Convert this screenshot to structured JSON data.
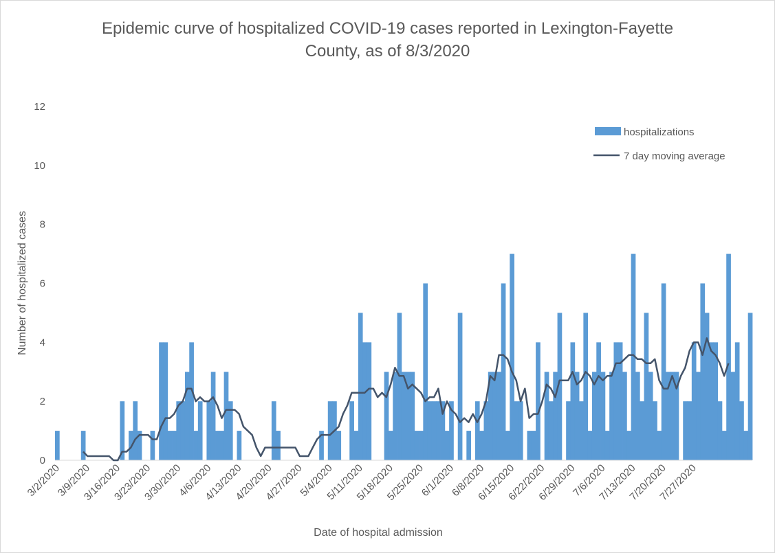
{
  "chart_data": {
    "type": "bar",
    "title_lines": [
      "Epidemic curve of hospitalized COVID-19 cases reported in Lexington-Fayette",
      "County, as of 8/3/2020"
    ],
    "xlabel": "Date of hospital admission",
    "ylabel": "Number of hospitalized cases",
    "ylim": [
      0,
      12
    ],
    "yticks": [
      0,
      2,
      4,
      6,
      8,
      10,
      12
    ],
    "x_start": "3/2/2020",
    "x_tick_labels": [
      "3/2/2020",
      "3/9/2020",
      "3/16/2020",
      "3/23/2020",
      "3/30/2020",
      "4/6/2020",
      "4/13/2020",
      "4/20/2020",
      "4/27/2020",
      "5/4/2020",
      "5/11/2020",
      "5/18/2020",
      "5/25/2020",
      "6/1/2020",
      "6/8/2020",
      "6/15/2020",
      "6/22/2020",
      "6/29/2020",
      "7/6/2020",
      "7/13/2020",
      "7/20/2020",
      "7/27/2020"
    ],
    "legend_position": "top-right",
    "grid": false,
    "colors": {
      "bars": "#5b9bd5",
      "line": "#44546a",
      "text": "#595959",
      "axis": "#d9d9d9"
    },
    "series": [
      {
        "name": "hospitalizations",
        "type": "bar",
        "values": [
          1,
          0,
          0,
          0,
          0,
          0,
          1,
          0,
          0,
          0,
          0,
          0,
          0,
          0,
          0,
          2,
          0,
          1,
          2,
          1,
          0,
          0,
          1,
          0,
          4,
          4,
          1,
          1,
          2,
          2,
          3,
          4,
          1,
          2,
          0,
          2,
          3,
          1,
          1,
          3,
          2,
          0,
          1,
          0,
          0,
          0,
          0,
          0,
          0,
          0,
          2,
          1,
          0,
          0,
          0,
          0,
          0,
          0,
          0,
          0,
          0,
          1,
          0,
          2,
          2,
          1,
          0,
          0,
          2,
          1,
          5,
          4,
          4,
          0,
          0,
          0,
          3,
          1,
          3,
          5,
          3,
          3,
          3,
          1,
          1,
          6,
          2,
          2,
          2,
          2,
          1,
          2,
          0,
          5,
          0,
          1,
          0,
          2,
          1,
          2,
          3,
          3,
          3,
          6,
          1,
          7,
          2,
          2,
          0,
          1,
          1,
          4,
          0,
          3,
          2,
          3,
          5,
          0,
          2,
          4,
          3,
          2,
          5,
          1,
          3,
          4,
          3,
          1,
          3,
          4,
          4,
          3,
          1,
          7,
          3,
          2,
          5,
          3,
          2,
          1,
          6,
          3,
          3,
          3,
          0,
          2,
          2,
          4,
          3,
          6,
          5,
          4,
          4,
          2,
          1,
          7,
          3,
          4,
          2,
          1,
          5
        ]
      },
      {
        "name": "7 day moving average",
        "type": "line",
        "start_index": 6,
        "values": [
          0.29,
          0.14,
          0.14,
          0.14,
          0.14,
          0.14,
          0.14,
          0.0,
          0.0,
          0.29,
          0.29,
          0.43,
          0.71,
          0.86,
          0.86,
          0.86,
          0.71,
          0.71,
          1.14,
          1.43,
          1.43,
          1.57,
          1.86,
          2.0,
          2.43,
          2.43,
          2.0,
          2.14,
          2.0,
          2.0,
          2.14,
          1.86,
          1.43,
          1.71,
          1.71,
          1.71,
          1.57,
          1.14,
          1.0,
          0.86,
          0.43,
          0.14,
          0.43,
          0.43,
          0.43,
          0.43,
          0.43,
          0.43,
          0.43,
          0.43,
          0.14,
          0.14,
          0.14,
          0.43,
          0.71,
          0.86,
          0.86,
          0.86,
          1.0,
          1.14,
          1.57,
          1.86,
          2.29,
          2.29,
          2.29,
          2.29,
          2.43,
          2.43,
          2.14,
          2.29,
          2.14,
          2.57,
          3.14,
          2.86,
          2.86,
          2.43,
          2.57,
          2.43,
          2.29,
          2.0,
          2.14,
          2.14,
          2.43,
          1.57,
          2.0,
          1.71,
          1.57,
          1.29,
          1.43,
          1.29,
          1.57,
          1.29,
          1.57,
          2.0,
          2.86,
          2.71,
          3.57,
          3.57,
          3.43,
          3.0,
          2.71,
          2.0,
          2.43,
          1.43,
          1.57,
          1.57,
          2.0,
          2.57,
          2.43,
          2.14,
          2.71,
          2.71,
          2.71,
          3.0,
          2.57,
          2.71,
          3.0,
          2.86,
          2.57,
          2.86,
          2.71,
          2.86,
          2.86,
          3.29,
          3.29,
          3.43,
          3.57,
          3.57,
          3.43,
          3.43,
          3.29,
          3.29,
          3.43,
          2.71,
          2.43,
          2.43,
          2.86,
          2.43,
          2.86,
          3.14,
          3.71,
          4.0,
          4.0,
          3.57,
          4.14,
          3.71,
          3.57,
          3.29,
          2.86,
          3.29
        ]
      }
    ]
  }
}
